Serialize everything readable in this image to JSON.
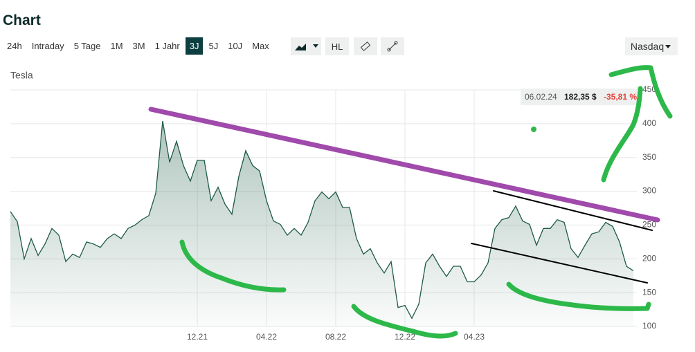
{
  "header": {
    "title": "Chart"
  },
  "toolbar": {
    "ranges": [
      "24h",
      "Intraday",
      "5 Tage",
      "1M",
      "3M",
      "1 Jahr",
      "3J",
      "5J",
      "10J",
      "Max"
    ],
    "active_index": 6,
    "hl": "HL",
    "exchange": "Nasdaq"
  },
  "tooltip": {
    "date": "06.02.24",
    "price": "182,35 $",
    "change": "-35,81 %"
  },
  "chart_data": {
    "type": "area",
    "title": "Tesla",
    "color": "#1d5a44",
    "categories": [
      null,
      null,
      null,
      null,
      null,
      null,
      null,
      null,
      null,
      null,
      null,
      null,
      null,
      null,
      null,
      null,
      null,
      null,
      null,
      null,
      null,
      null,
      null,
      null,
      null,
      null,
      null,
      "12.21",
      null,
      null,
      null,
      null,
      null,
      null,
      null,
      null,
      null,
      "04.22",
      null,
      null,
      null,
      null,
      null,
      null,
      null,
      null,
      null,
      "08.22",
      null,
      null,
      null,
      null,
      null,
      null,
      null,
      null,
      null,
      "12.22",
      null,
      null,
      null,
      null,
      null,
      null,
      null,
      null,
      null,
      "04.23",
      null,
      null,
      null,
      null,
      null,
      null,
      null,
      null,
      null,
      null,
      null,
      null,
      null,
      null,
      null,
      null,
      null,
      null,
      null,
      null,
      null,
      null,
      null
    ],
    "values": [
      270,
      255,
      200,
      230,
      205,
      222,
      245,
      235,
      196,
      207,
      202,
      225,
      222,
      217,
      230,
      237,
      230,
      245,
      250,
      258,
      264,
      297,
      404,
      343,
      374,
      338,
      315,
      346,
      346,
      286,
      306,
      281,
      266,
      322,
      360,
      338,
      330,
      286,
      256,
      251,
      235,
      245,
      235,
      254,
      286,
      299,
      289,
      299,
      276,
      276,
      230,
      207,
      215,
      194,
      179,
      196,
      128,
      131,
      112,
      133,
      194,
      207,
      189,
      174,
      189,
      189,
      166,
      166,
      176,
      194,
      245,
      258,
      261,
      278,
      256,
      251,
      220,
      245,
      245,
      258,
      254,
      215,
      202,
      220,
      237,
      240,
      254,
      248,
      225,
      189,
      182.35
    ],
    "ylim": [
      100,
      450
    ],
    "yticks": [
      100,
      150,
      200,
      250,
      300,
      350,
      400,
      450
    ],
    "grid": true
  }
}
